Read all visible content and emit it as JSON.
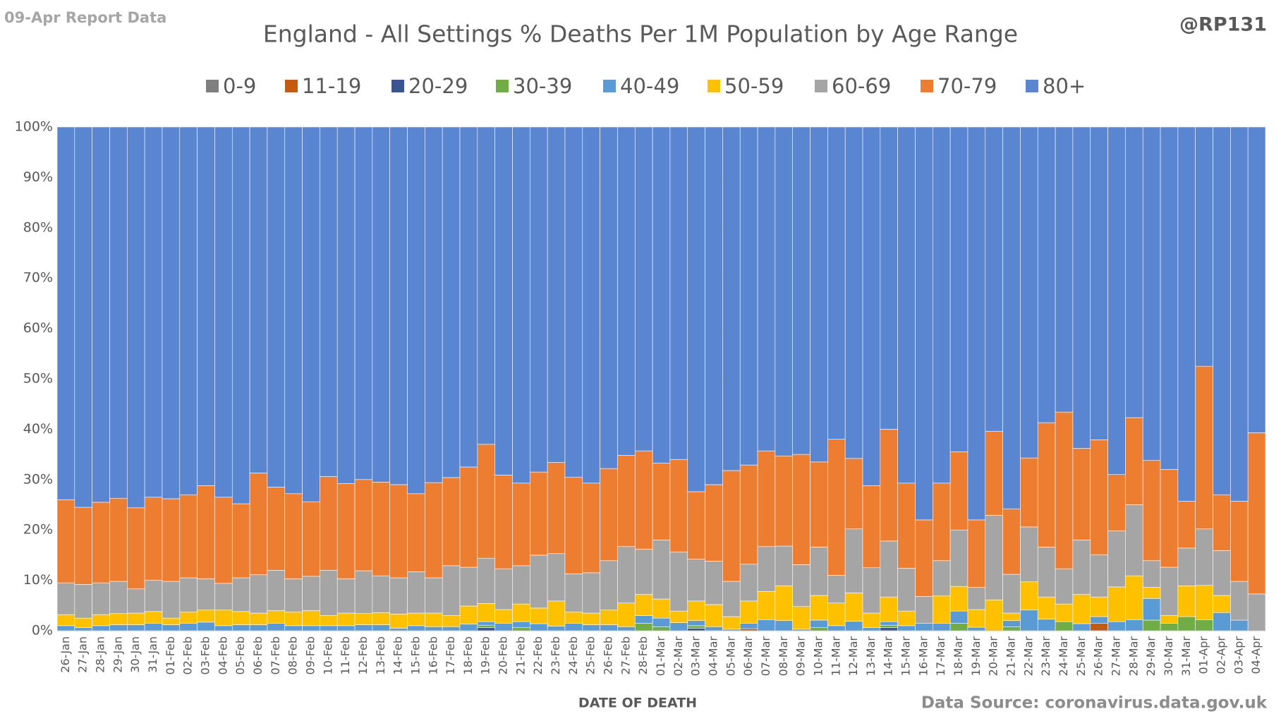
{
  "chart_data": {
    "type": "stacked_bar_percent",
    "title": "England - All Settings % Deaths Per 1M Population by Age Range",
    "report_label": "09-Apr Report Data",
    "handle": "@RP131",
    "source": "Data Source: coronavirus.data.gov.uk",
    "x_label": "DATE OF DEATH",
    "categories": [
      "26-Jan",
      "27-Jan",
      "28-Jan",
      "29-Jan",
      "30-Jan",
      "31-Jan",
      "01-Feb",
      "02-Feb",
      "03-Feb",
      "04-Feb",
      "05-Feb",
      "06-Feb",
      "07-Feb",
      "08-Feb",
      "09-Feb",
      "10-Feb",
      "11-Feb",
      "12-Feb",
      "13-Feb",
      "14-Feb",
      "15-Feb",
      "16-Feb",
      "17-Feb",
      "18-Feb",
      "19-Feb",
      "20-Feb",
      "21-Feb",
      "22-Feb",
      "23-Feb",
      "24-Feb",
      "25-Feb",
      "26-Feb",
      "27-Feb",
      "28-Feb",
      "01-Mar",
      "02-Mar",
      "03-Mar",
      "04-Mar",
      "05-Mar",
      "06-Mar",
      "07-Mar",
      "08-Mar",
      "09-Mar",
      "10-Mar",
      "11-Mar",
      "12-Mar",
      "13-Mar",
      "14-Mar",
      "15-Mar",
      "16-Mar",
      "17-Mar",
      "18-Mar",
      "19-Mar",
      "20-Mar",
      "21-Mar",
      "22-Mar",
      "23-Mar",
      "24-Mar",
      "25-Mar",
      "26-Mar",
      "27-Mar",
      "28-Mar",
      "29-Mar",
      "30-Mar",
      "31-Mar",
      "01-Apr",
      "02-Apr",
      "03-Apr",
      "04-Apr"
    ],
    "series": [
      {
        "name": "0-9",
        "color": "#7f7f7f",
        "values": [
          0,
          0,
          0,
          0,
          0,
          0,
          0,
          0,
          0,
          0,
          0,
          0,
          0,
          0,
          0,
          0,
          0,
          0,
          0,
          0,
          0,
          0,
          0,
          0,
          0,
          0,
          0,
          0,
          0,
          0,
          0,
          0,
          0,
          0,
          0,
          0,
          0,
          0,
          0,
          0,
          0,
          0,
          0,
          0,
          0,
          0,
          0,
          0,
          0,
          0,
          0,
          0,
          0,
          0,
          0,
          0,
          0,
          0,
          0,
          0,
          0,
          0,
          0,
          0,
          0,
          0,
          0,
          0,
          0
        ]
      },
      {
        "name": "11-19",
        "color": "#c55a11",
        "values": [
          0,
          0,
          0,
          0,
          0,
          0,
          0,
          0,
          0,
          0,
          0,
          0,
          0,
          0,
          0,
          0,
          0,
          0,
          0,
          0,
          0,
          0,
          0,
          0,
          0,
          0,
          0,
          0,
          0,
          0,
          0,
          0,
          0,
          0,
          0,
          0,
          0,
          0,
          0,
          0.4,
          0,
          0,
          0,
          0,
          0,
          0,
          0,
          0,
          0,
          0,
          0,
          0,
          0,
          0,
          0,
          0,
          0,
          0,
          0,
          1.5,
          0,
          0,
          0,
          0,
          0,
          0,
          0,
          0,
          0
        ]
      },
      {
        "name": "20-29",
        "color": "#3b5592",
        "values": [
          0,
          0,
          0,
          0,
          0,
          0,
          0,
          0,
          0,
          0,
          0,
          0,
          0,
          0,
          0,
          0,
          0,
          0,
          0,
          0,
          0,
          0,
          0,
          0,
          0.6,
          0,
          0,
          0,
          0,
          0,
          0,
          0,
          0,
          0,
          0,
          0,
          0.5,
          0,
          0,
          0,
          0,
          0,
          0,
          0,
          0,
          0,
          0,
          0.6,
          0,
          0,
          0,
          0,
          0,
          0,
          0,
          0,
          0,
          0,
          0,
          0,
          0,
          0,
          0,
          0,
          0,
          0,
          0,
          0,
          0
        ]
      },
      {
        "name": "30-39",
        "color": "#70ad47",
        "values": [
          0,
          0,
          0,
          0,
          0,
          0,
          0,
          0,
          0,
          0,
          0,
          0,
          0,
          0,
          0,
          0,
          0,
          0,
          0,
          0,
          0,
          0,
          0,
          0,
          0.5,
          0,
          0.6,
          0,
          0,
          0,
          0,
          0,
          0,
          1.5,
          0.8,
          0,
          0.5,
          0,
          0,
          0,
          0,
          0,
          0,
          0.6,
          0,
          0,
          0,
          0.5,
          0,
          0,
          0,
          1.5,
          0,
          0,
          0.8,
          0,
          0,
          1.8,
          0,
          0,
          0,
          0,
          2.1,
          1.5,
          2.8,
          2.2,
          0,
          0,
          0
        ]
      },
      {
        "name": "40-49",
        "color": "#5b9bd5",
        "values": [
          1.0,
          0.6,
          1.0,
          1.2,
          1.2,
          1.5,
          1.2,
          1.5,
          1.7,
          1.0,
          1.2,
          1.2,
          1.5,
          1.0,
          1.0,
          1.0,
          1.0,
          1.2,
          1.2,
          0.5,
          1.0,
          0.8,
          0.8,
          1.3,
          0.7,
          1.5,
          1.2,
          1.4,
          0.9,
          1.5,
          1.2,
          1.2,
          0.8,
          1.5,
          1.7,
          1.6,
          1.0,
          0.8,
          0.3,
          1.1,
          2.2,
          2.0,
          0.3,
          1.5,
          1.0,
          1.9,
          0.6,
          0.7,
          1.0,
          1.5,
          1.5,
          2.4,
          0.7,
          0,
          1.2,
          4.1,
          2.3,
          0,
          1.4,
          1.3,
          1.8,
          2.2,
          4.3,
          0,
          0,
          0,
          3.6,
          2.1,
          0
        ]
      },
      {
        "name": "50-59",
        "color": "#ffc000",
        "values": [
          2.2,
          1.9,
          2.2,
          2.2,
          2.3,
          2.3,
          1.3,
          2.2,
          2.4,
          3.1,
          2.6,
          2.3,
          2.5,
          2.7,
          3.0,
          2.0,
          2.5,
          2.2,
          2.4,
          2.8,
          2.5,
          2.7,
          2.2,
          3.6,
          3.6,
          2.7,
          3.5,
          3.1,
          5.0,
          2.2,
          2.3,
          2.9,
          4.7,
          4.2,
          3.8,
          2.3,
          3.9,
          4.4,
          2.5,
          4.4,
          5.6,
          6.9,
          4.5,
          4.9,
          4.5,
          5.6,
          2.9,
          4.9,
          2.9,
          0,
          5.4,
          4.9,
          3.5,
          6.1,
          1.5,
          5.6,
          4.4,
          3.5,
          5.8,
          3.9,
          6.9,
          8.7,
          2.2,
          1.5,
          6.1,
          6.8,
          3.4,
          0,
          0
        ]
      },
      {
        "name": "60-69",
        "color": "#a5a5a5",
        "values": [
          6.3,
          6.7,
          6.3,
          6.4,
          4.8,
          6.2,
          7.3,
          6.8,
          6.2,
          5.3,
          6.7,
          7.6,
          8.0,
          6.6,
          6.8,
          9.0,
          6.8,
          8.5,
          7.3,
          7.2,
          8.2,
          7.0,
          9.9,
          7.7,
          9.0,
          8.1,
          7.6,
          10.5,
          9.4,
          7.6,
          8.0,
          9.8,
          11.2,
          9.0,
          11.7,
          11.7,
          8.3,
          8.6,
          7.0,
          7.3,
          8.9,
          7.9,
          8.3,
          9.6,
          5.5,
          12.7,
          9.0,
          11.1,
          8.5,
          5.3,
          7.0,
          11.2,
          4.4,
          16.8,
          7.7,
          10.9,
          9.9,
          7.0,
          10.8,
          8.4,
          11.1,
          14.1,
          5.3,
          9.6,
          7.5,
          11.2,
          8.9,
          7.7,
          7.3
        ]
      },
      {
        "name": "70-79",
        "color": "#ed7d31",
        "values": [
          16.5,
          15.3,
          16.0,
          16.5,
          16.1,
          16.5,
          16.4,
          16.5,
          18.5,
          17.1,
          14.7,
          20.2,
          16.5,
          16.9,
          14.8,
          18.6,
          18.9,
          18.1,
          18.6,
          18.5,
          15.5,
          18.9,
          17.5,
          19.9,
          22.6,
          18.6,
          16.4,
          16.5,
          18.1,
          19.2,
          17.8,
          18.3,
          18.1,
          19.5,
          15.3,
          18.4,
          13.4,
          15.2,
          22.0,
          19.7,
          19.0,
          17.9,
          21.9,
          16.9,
          27.0,
          14.0,
          16.3,
          22.2,
          16.9,
          15.2,
          15.4,
          15.5,
          13.4,
          16.7,
          13.0,
          13.7,
          24.7,
          31.1,
          18.2,
          22.8,
          11.2,
          17.3,
          19.9,
          19.4,
          9.3,
          32.3,
          11.1,
          15.9,
          32.0
        ]
      },
      {
        "name": "80+",
        "color": "#5a85d0",
        "values": [
          74.0,
          75.5,
          74.5,
          73.7,
          75.6,
          73.5,
          73.8,
          73.0,
          71.2,
          73.5,
          74.8,
          68.7,
          71.5,
          72.8,
          74.4,
          69.4,
          70.8,
          70.0,
          70.5,
          71.0,
          72.8,
          70.6,
          69.6,
          67.5,
          63.0,
          69.1,
          70.7,
          68.5,
          66.6,
          69.5,
          70.7,
          67.8,
          65.2,
          64.3,
          66.7,
          66.0,
          72.4,
          71.0,
          68.2,
          67.1,
          64.3,
          65.3,
          65.0,
          66.5,
          62.0,
          65.8,
          71.2,
          60.0,
          70.7,
          78.0,
          70.7,
          64.5,
          78.0,
          60.4,
          75.8,
          65.7,
          58.7,
          56.6,
          63.8,
          62.1,
          69.0,
          57.7,
          66.2,
          68.0,
          74.3,
          47.5,
          73.0,
          74.3,
          60.7
        ]
      }
    ],
    "ylim": [
      0,
      100
    ],
    "yticks": [
      {
        "value": 0,
        "label": "0%"
      },
      {
        "value": 10,
        "label": "10%"
      },
      {
        "value": 20,
        "label": "20%"
      },
      {
        "value": 30,
        "label": "30%"
      },
      {
        "value": 40,
        "label": "40%"
      },
      {
        "value": 50,
        "label": "50%"
      },
      {
        "value": 60,
        "label": "60%"
      },
      {
        "value": 70,
        "label": "70%"
      },
      {
        "value": 80,
        "label": "80%"
      },
      {
        "value": 90,
        "label": "90%"
      },
      {
        "value": 100,
        "label": "100%"
      }
    ],
    "grid": true,
    "legend": "top"
  }
}
